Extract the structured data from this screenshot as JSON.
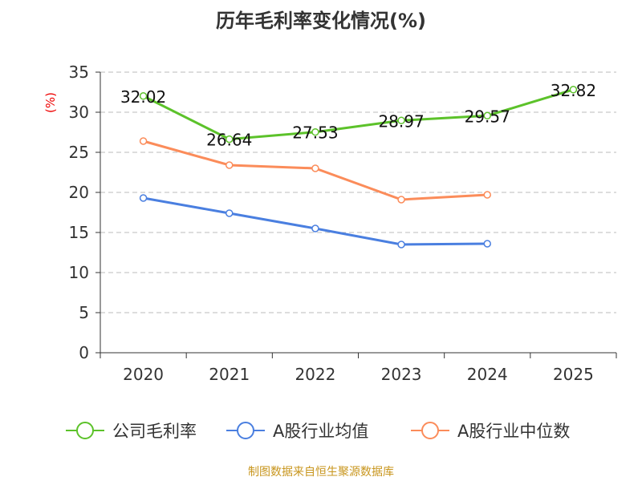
{
  "chart_data": {
    "type": "line",
    "title": "历年毛利率变化情况(%)",
    "ylabel": "(%)",
    "xlabel": "",
    "categories": [
      "2020",
      "2021",
      "2022",
      "2023",
      "2024",
      "2025"
    ],
    "ylim": [
      0,
      35
    ],
    "yticks": [
      0,
      5,
      10,
      15,
      20,
      25,
      30,
      35
    ],
    "grid": true,
    "legend_position": "bottom",
    "series": [
      {
        "name": "公司毛利率",
        "color": "#5cc22a",
        "values": [
          32.02,
          26.64,
          27.53,
          28.97,
          29.57,
          32.82
        ],
        "labels": [
          "32.02",
          "26.64",
          "27.53",
          "28.97",
          "29.57",
          "32.82"
        ]
      },
      {
        "name": "A股行业均值",
        "color": "#4a7fe0",
        "values": [
          19.3,
          17.4,
          15.5,
          13.5,
          13.6,
          null
        ]
      },
      {
        "name": "A股行业中位数",
        "color": "#fb8c5a",
        "values": [
          26.4,
          23.4,
          23.0,
          19.1,
          19.7,
          null
        ]
      }
    ]
  },
  "source": "制图数据来自恒生聚源数据库"
}
